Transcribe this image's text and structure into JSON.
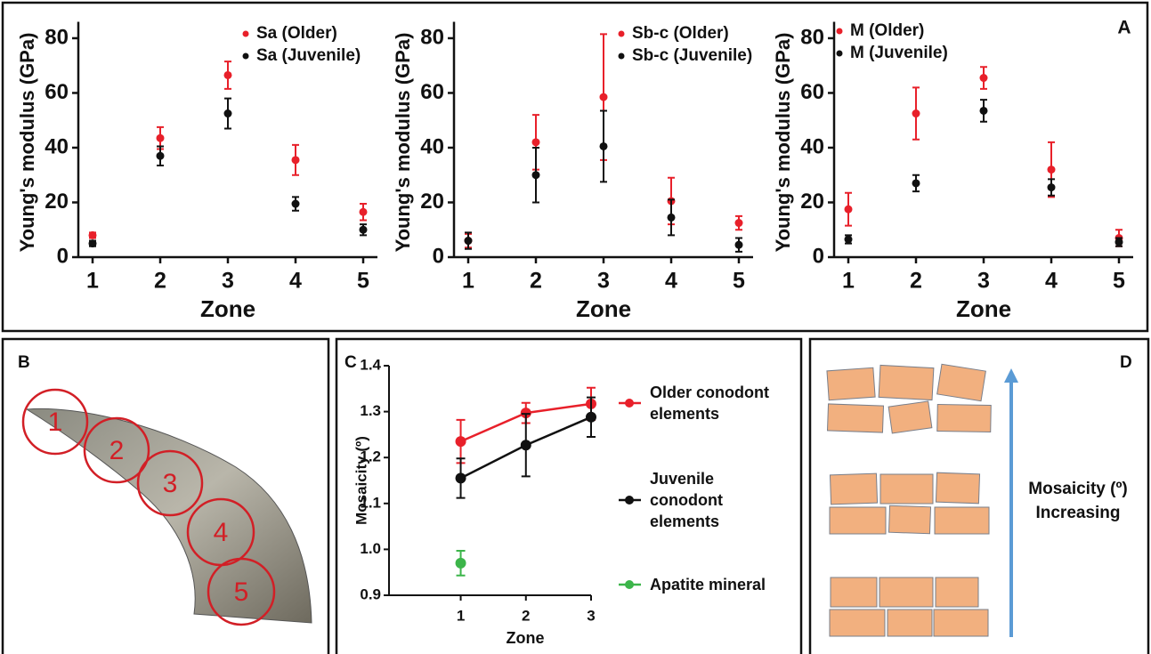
{
  "panel_labels": [
    "A",
    "B",
    "C",
    "D"
  ],
  "chart_data": [
    {
      "type": "scatter",
      "xlabel": "Zone",
      "ylabel": "Young's modulus (GPa)",
      "categories": [
        "1",
        "2",
        "3",
        "4",
        "5"
      ],
      "ylim": [
        0,
        86
      ],
      "yticks": [
        0,
        20,
        40,
        60,
        80
      ],
      "legend": "upper right",
      "series": [
        {
          "name": "Sa (Older)",
          "color": "#e8202a",
          "values": [
            8,
            43.5,
            66.5,
            35.5,
            16.5
          ],
          "errors": [
            1,
            4,
            5,
            5.5,
            3
          ]
        },
        {
          "name": "Sa (Juvenile)",
          "color": "#111111",
          "values": [
            5,
            37,
            52.5,
            19.5,
            10
          ],
          "errors": [
            1,
            3.5,
            5.5,
            2.5,
            2
          ]
        }
      ]
    },
    {
      "type": "scatter",
      "xlabel": "Zone",
      "ylabel": "Young's modulus (GPa)",
      "categories": [
        "1",
        "2",
        "3",
        "4",
        "5"
      ],
      "ylim": [
        0,
        86
      ],
      "yticks": [
        0,
        20,
        40,
        60,
        80
      ],
      "legend": "upper right",
      "series": [
        {
          "name": "Sb-c (Older)",
          "color": "#e8202a",
          "values": [
            6,
            42,
            58.5,
            20.5,
            12.5
          ],
          "errors": [
            2.5,
            10,
            23,
            8.5,
            2.5
          ]
        },
        {
          "name": "Sb-c (Juvenile)",
          "color": "#111111",
          "values": [
            6,
            30,
            40.5,
            14.5,
            4.5
          ],
          "errors": [
            3,
            10,
            13,
            6.5,
            2.5
          ]
        }
      ]
    },
    {
      "type": "scatter",
      "xlabel": "Zone",
      "ylabel": "Young's modulus (GPa)",
      "categories": [
        "1",
        "2",
        "3",
        "4",
        "5"
      ],
      "ylim": [
        0,
        86
      ],
      "yticks": [
        0,
        20,
        40,
        60,
        80
      ],
      "legend": "upper left",
      "series": [
        {
          "name": "M (Older)",
          "color": "#e8202a",
          "values": [
            17.5,
            52.5,
            65.5,
            32,
            7
          ],
          "errors": [
            6,
            9.5,
            4,
            10,
            3
          ]
        },
        {
          "name": "M (Juvenile)",
          "color": "#111111",
          "values": [
            6.5,
            27,
            53.5,
            25.5,
            5.5
          ],
          "errors": [
            1.5,
            3,
            4,
            3,
            1.5
          ]
        }
      ]
    },
    {
      "type": "line",
      "xlabel": "Zone",
      "ylabel": "Mosaicity (º)",
      "x": [
        1,
        2,
        3
      ],
      "xlim": [
        -0.1,
        3
      ],
      "xticks": [
        1,
        2,
        3
      ],
      "ylim": [
        0.9,
        1.4
      ],
      "yticks": [
        0.9,
        {
          "value": 1,
          "label": "1.0"
        },
        1.1,
        1.2,
        1.3,
        1.4
      ],
      "legend": "right",
      "series": [
        {
          "name": "Older conodont elements",
          "color": "#e8202a",
          "values": [
            1.235,
            1.297,
            1.317
          ],
          "errors": [
            0.047,
            0.022,
            0.035
          ]
        },
        {
          "name": "Juvenile conodont elements",
          "color": "#111111",
          "values": [
            1.155,
            1.227,
            1.288
          ],
          "errors": [
            0.043,
            0.068,
            0.043
          ]
        },
        {
          "name": "Apatite mineral",
          "color": "#3cb54a",
          "values": [
            0.97,
            null,
            null
          ],
          "errors": [
            0.027,
            null,
            null
          ]
        }
      ]
    }
  ],
  "panel_b": {
    "zone_labels": [
      "1",
      "2",
      "3",
      "4",
      "5"
    ]
  },
  "panel_d": {
    "arrow_label": "Mosaicity (º) Increasing"
  }
}
